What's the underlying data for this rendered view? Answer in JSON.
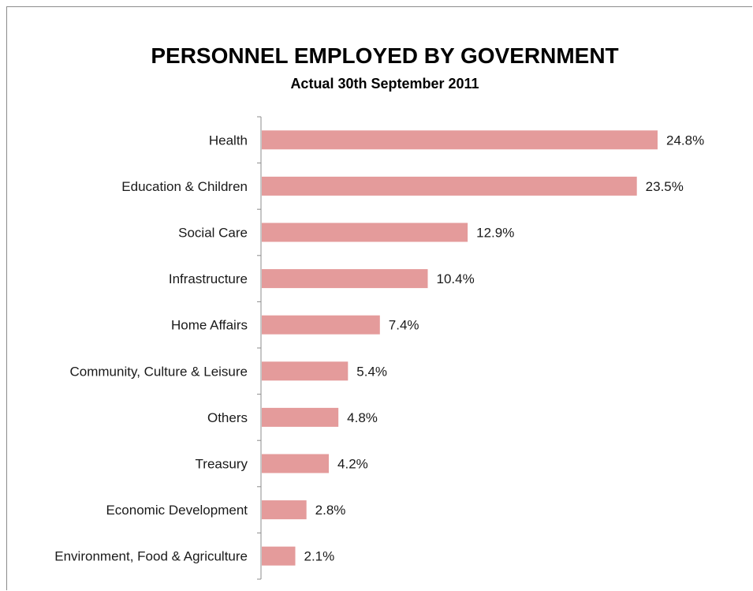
{
  "chart_data": {
    "type": "bar",
    "orientation": "horizontal",
    "title": "PERSONNEL EMPLOYED BY GOVERNMENT",
    "subtitle": "Actual 30th September 2011",
    "categories": [
      "Health",
      "Education & Children",
      "Social Care",
      "Infrastructure",
      "Home Affairs",
      "Community, Culture & Leisure",
      "Others",
      "Treasury",
      "Economic Development",
      "Environment, Food & Agriculture"
    ],
    "values": [
      24.8,
      23.5,
      12.9,
      10.4,
      7.4,
      5.4,
      4.8,
      4.2,
      2.8,
      2.1
    ],
    "value_labels": [
      "24.8%",
      "23.5%",
      "12.9%",
      "10.4%",
      "7.4%",
      "5.4%",
      "4.8%",
      "4.2%",
      "2.8%",
      "2.1%"
    ],
    "xlim": [
      0,
      24.8
    ],
    "bar_color": "#e49b9b",
    "grid": false,
    "legend": "none"
  }
}
